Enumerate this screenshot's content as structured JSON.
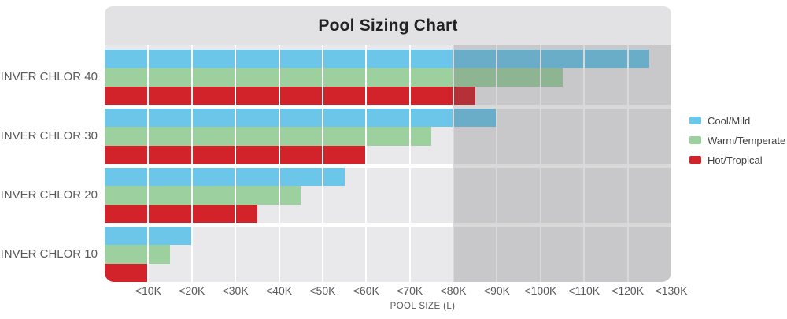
{
  "chart_data": {
    "type": "bar",
    "orientation": "horizontal",
    "title": "Pool Sizing Chart",
    "xlabel": "POOL SIZE (L)",
    "categories": [
      "INVER CHLOR 40",
      "INVER CHLOR 30",
      "INVER CHLOR 20",
      "INVER CHLOR 10"
    ],
    "series": [
      {
        "name": "Cool/Mild",
        "color": "#6CC6E9",
        "values_liters": [
          125000,
          90000,
          55000,
          20000
        ]
      },
      {
        "name": "Warm/Temperate",
        "color": "#9DD09F",
        "values_liters": [
          105000,
          75000,
          45000,
          15000
        ]
      },
      {
        "name": "Hot/Tropical",
        "color": "#D2232A",
        "values_liters": [
          85000,
          60000,
          35000,
          10000
        ]
      }
    ],
    "x_ticks": [
      "<10K",
      "<20K",
      "<30K",
      "<40K",
      "<50K",
      "<60K",
      "<70K",
      "<80K",
      "<90K",
      "<100K",
      "<110K",
      "<120K",
      "<130K"
    ],
    "xlim": [
      0,
      130000
    ],
    "grid": true,
    "legend_position": "right",
    "shaded_region": {
      "from": 80000,
      "to": 130000
    },
    "colors": {
      "header_background": "#E2E2E4",
      "plot_background": "#E9E9EB",
      "shaded_overlay": "rgba(95,95,100,0.24)",
      "gridline": "#FFFFFF"
    }
  }
}
